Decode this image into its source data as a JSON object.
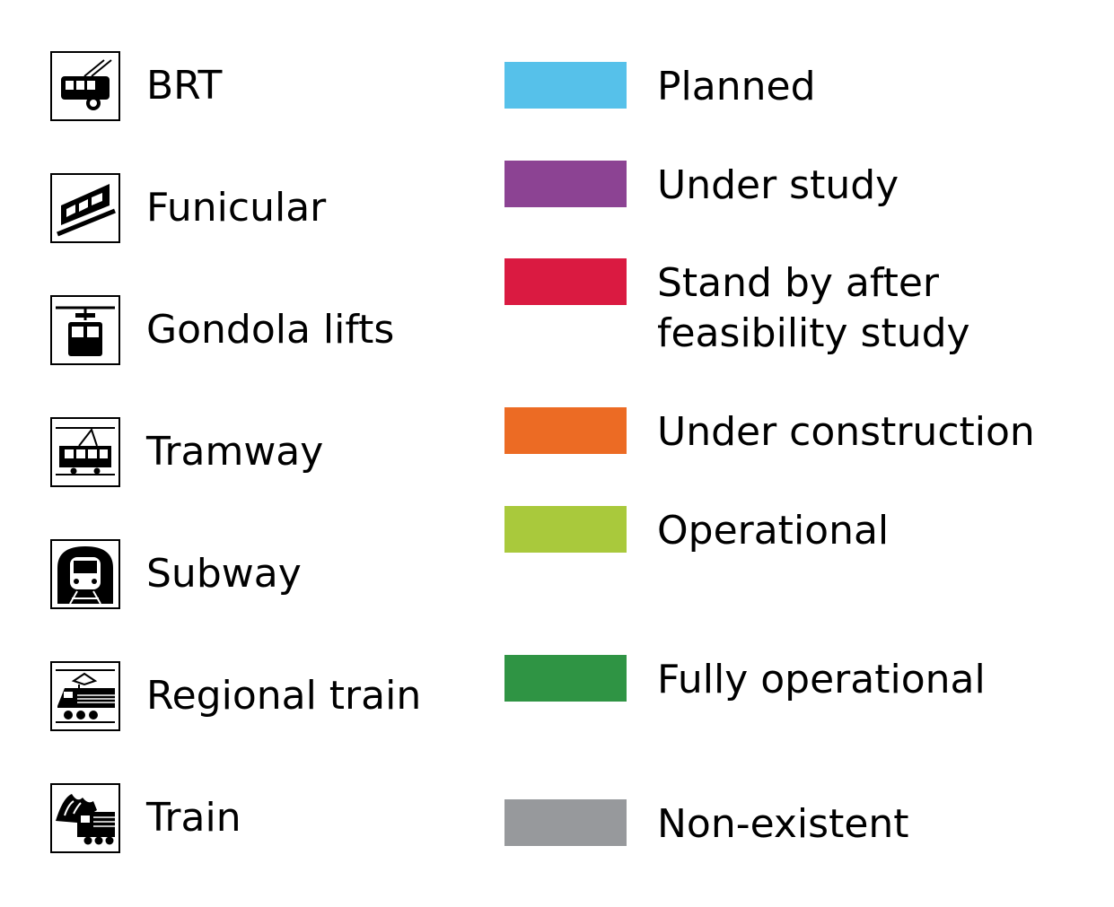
{
  "modes": [
    {
      "label": "BRT",
      "icon": "trolleybus-icon"
    },
    {
      "label": "Funicular",
      "icon": "funicular-icon"
    },
    {
      "label": "Gondola lifts",
      "icon": "gondola-icon"
    },
    {
      "label": "Tramway",
      "icon": "tram-icon"
    },
    {
      "label": "Subway",
      "icon": "subway-icon"
    },
    {
      "label": "Regional train",
      "icon": "regional-train-icon"
    },
    {
      "label": "Train",
      "icon": "mountain-train-icon"
    }
  ],
  "statuses": [
    {
      "label": "Planned",
      "color": "#56c1ea"
    },
    {
      "label": "Under study",
      "color": "#8c4393"
    },
    {
      "label_line1": "Stand by after",
      "label_line2": "feasibility study",
      "color": "#da1a41"
    },
    {
      "label": "Under construction",
      "color": "#ec6b24"
    },
    {
      "label": "Operational",
      "color": "#a9c93c"
    },
    {
      "label": "Fully operational",
      "color": "#2f9444"
    },
    {
      "label": "Non-existent",
      "color": "#97999c"
    }
  ]
}
